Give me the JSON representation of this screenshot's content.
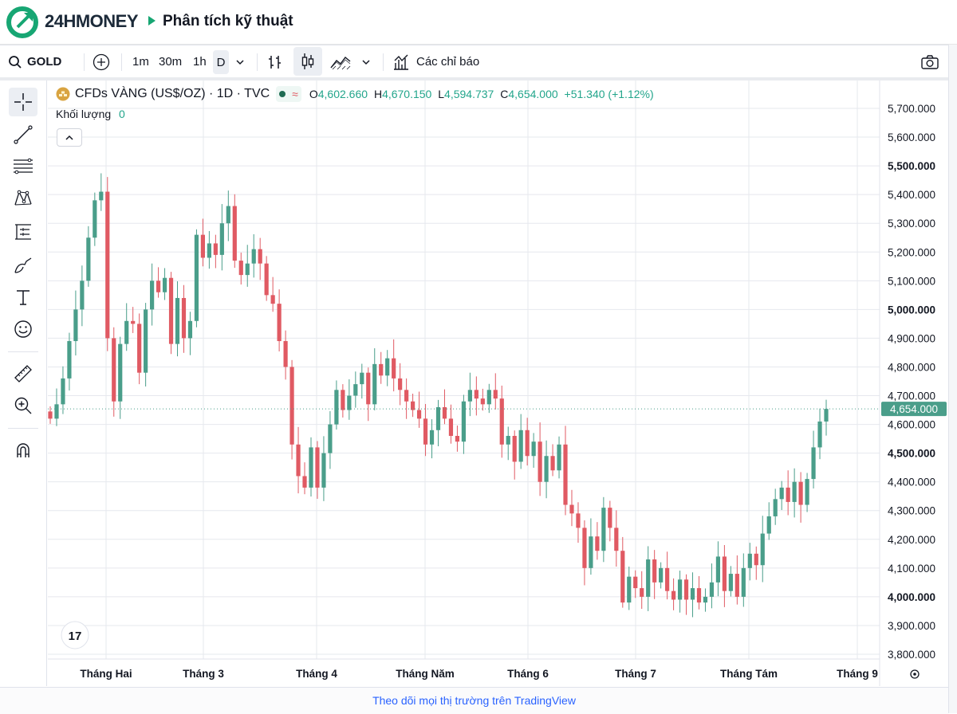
{
  "header": {
    "brand": "24HMONEY",
    "page_title": "Phân tích kỹ thuật",
    "brand_color": "#1c2a39",
    "accent_color": "#17a673"
  },
  "toolbar": {
    "symbol": "GOLD",
    "intervals": [
      "1m",
      "30m",
      "1h",
      "D"
    ],
    "active_interval": "D",
    "indicators_label": "Các chỉ báo",
    "icons": [
      "search-icon",
      "add-symbol-icon",
      "chevron-down-icon",
      "bar-style-icon",
      "candle-style-icon",
      "area-style-icon",
      "indicators-icon",
      "camera-icon"
    ]
  },
  "left_tools": [
    "crosshair-icon",
    "trend-line-icon",
    "fib-icon",
    "pattern-icon",
    "position-icon",
    "brush-icon",
    "text-icon",
    "emoji-icon",
    "ruler-icon",
    "zoom-in-icon",
    "magnet-icon"
  ],
  "legend": {
    "title": "CFDs VÀNG (US$/OZ) · 1D · TVC",
    "o_label": "O",
    "o": "4,602.660",
    "h_label": "H",
    "h": "4,670.150",
    "l_label": "L",
    "l": "4,594.737",
    "c_label": "C",
    "c": "4,654.000",
    "change": "+51.340 (+1.12%)",
    "volume_label": "Khối lượng",
    "volume": "0"
  },
  "chart_data": {
    "type": "candlestick",
    "y_ticks": [
      "5,700.000",
      "5,600.000",
      "5,500.000",
      "5,400.000",
      "5,300.000",
      "5,200.000",
      "5,100.000",
      "5,000.000",
      "4,900.000",
      "4,800.000",
      "4,700.000",
      "4,600.000",
      "4,500.000",
      "4,400.000",
      "4,300.000",
      "4,200.000",
      "4,100.000",
      "4,000.000",
      "3,900.000",
      "3,800.000"
    ],
    "bold_ticks": [
      "5,500.000",
      "5,000.000",
      "4,500.000",
      "4,000.000"
    ],
    "ylim": [
      3780,
      5740
    ],
    "x_ticks": [
      "Tháng Hai",
      "Tháng 3",
      "Tháng 4",
      "Tháng Năm",
      "Tháng 6",
      "Tháng 7",
      "Tháng Tám",
      "Tháng 9"
    ],
    "last_price_label": "4,654.000",
    "last_price": 4654,
    "up_color": "#4a9e8a",
    "down_color": "#e05a63",
    "closes": [
      4620,
      4670,
      4760,
      4890,
      5000,
      5100,
      5250,
      5380,
      5410,
      4900,
      4680,
      4880,
      4960,
      4950,
      4780,
      5000,
      5100,
      5060,
      5110,
      4880,
      5040,
      4900,
      4960,
      5260,
      5180,
      5230,
      5190,
      5300,
      5360,
      5170,
      5120,
      5160,
      5210,
      5160,
      5050,
      5020,
      4890,
      4800,
      4530,
      4420,
      4380,
      4520,
      4380,
      4500,
      4600,
      4720,
      4650,
      4700,
      4740,
      4780,
      4670,
      4810,
      4770,
      4830,
      4760,
      4720,
      4680,
      4650,
      4620,
      4530,
      4580,
      4660,
      4620,
      4560,
      4540,
      4680,
      4720,
      4690,
      4670,
      4720,
      4690,
      4530,
      4560,
      4470,
      4580,
      4490,
      4540,
      4400,
      4490,
      4440,
      4530,
      4320,
      4290,
      4240,
      4100,
      4210,
      4160,
      4310,
      4240,
      4160,
      3980,
      4070,
      4030,
      4000,
      4130,
      4050,
      4100,
      4020,
      3990,
      4060,
      3990,
      4030,
      3980,
      4000,
      4050,
      4140,
      4020,
      4080,
      4000,
      4100,
      4150,
      4110,
      4220,
      4280,
      4340,
      4380,
      4330,
      4400,
      4320,
      4410,
      4520,
      4610,
      4654
    ],
    "last_up": true
  },
  "footer": {
    "text": "Theo dõi mọi thị trường trên TradingView",
    "color": "#2962ff"
  }
}
